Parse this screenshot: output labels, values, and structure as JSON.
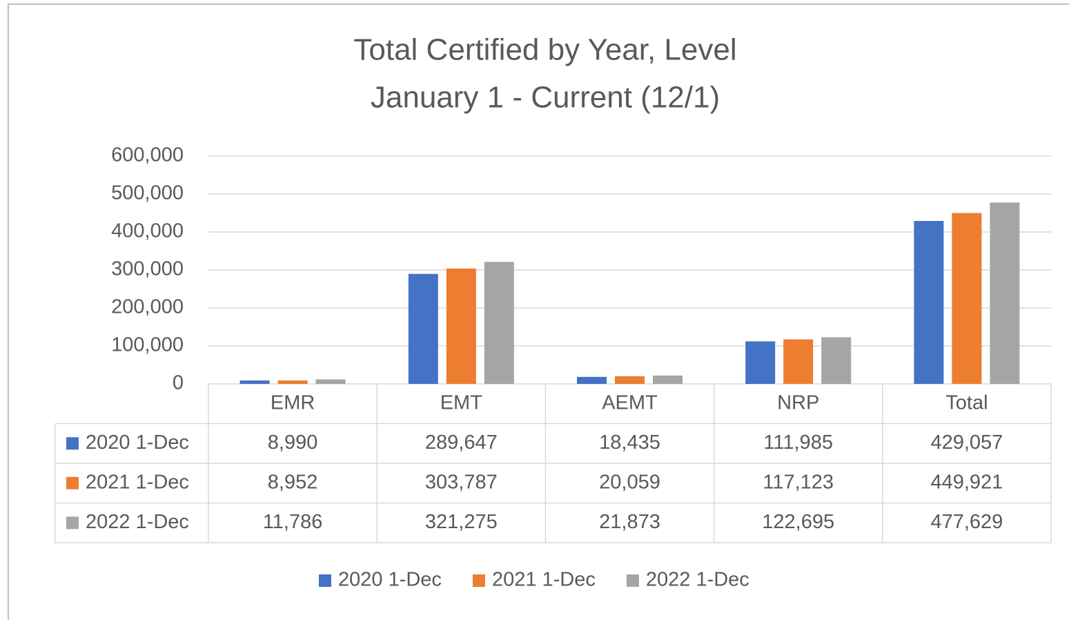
{
  "chart_data": {
    "type": "bar",
    "title": "Total Certified by Year, Level",
    "subtitle": "January 1 - Current (12/1)",
    "categories": [
      "EMR",
      "EMT",
      "AEMT",
      "NRP",
      "Total"
    ],
    "series": [
      {
        "name": "2020 1-Dec",
        "color": "#4472c4",
        "values": [
          8990,
          289647,
          18435,
          111985,
          429057
        ],
        "value_labels": [
          "8,990",
          "289,647",
          "18,435",
          "111,985",
          "429,057"
        ]
      },
      {
        "name": "2021 1-Dec",
        "color": "#ed7d31",
        "values": [
          8952,
          303787,
          20059,
          117123,
          449921
        ],
        "value_labels": [
          "8,952",
          "303,787",
          "20,059",
          "117,123",
          "449,921"
        ]
      },
      {
        "name": "2022 1-Dec",
        "color": "#a5a5a5",
        "values": [
          11786,
          321275,
          21873,
          122695,
          477629
        ],
        "value_labels": [
          "11,786",
          "321,275",
          "21,873",
          "122,695",
          "477,629"
        ]
      }
    ],
    "ylim": [
      0,
      600000
    ],
    "yticks": [
      0,
      {
        "value": 100000,
        "label": "100,000"
      },
      {
        "value": 200000,
        "label": "200,000"
      },
      {
        "value": 300000,
        "label": "300,000"
      },
      {
        "value": 400000,
        "label": "400,000"
      },
      {
        "value": 500000,
        "label": "500,000"
      },
      {
        "value": 600000,
        "label": "600,000"
      }
    ],
    "grid": true,
    "legend": "bottom"
  }
}
